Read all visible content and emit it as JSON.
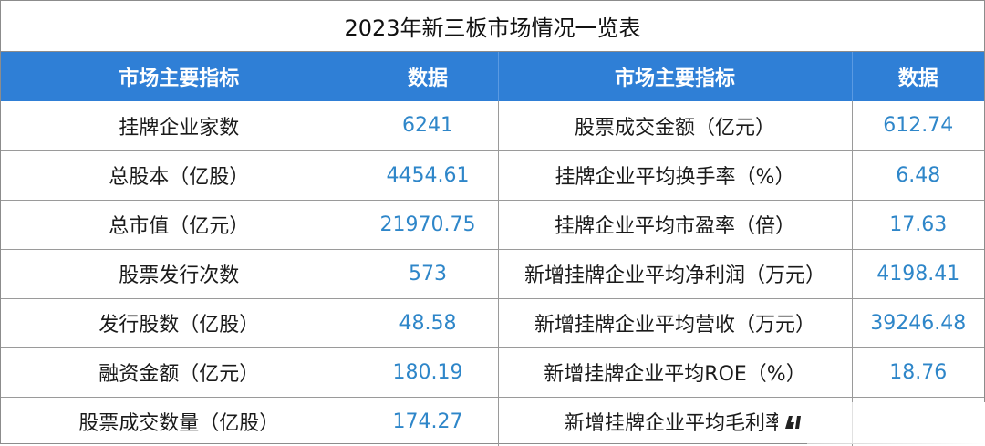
{
  "title": "2023年新三板市场情况一览表",
  "header": {
    "indicator_left": "市场主要指标",
    "data_left": "数据",
    "indicator_right": "市场主要指标",
    "data_right": "数据"
  },
  "rows": [
    {
      "left_label": "挂牌企业家数",
      "left_value": "6241",
      "right_label": "股票成交金额（亿元）",
      "right_value": "612.74"
    },
    {
      "left_label": "总股本（亿股）",
      "left_value": "4454.61",
      "right_label": "挂牌企业平均换手率（%）",
      "right_value": "6.48"
    },
    {
      "left_label": "总市值（亿元）",
      "left_value": "21970.75",
      "right_label": "挂牌企业平均市盈率（倍）",
      "right_value": "17.63"
    },
    {
      "left_label": "股票发行次数",
      "left_value": "573",
      "right_label": "新增挂牌企业平均净利润（万元）",
      "right_value": "4198.41"
    },
    {
      "left_label": "发行股数（亿股）",
      "left_value": "48.58",
      "right_label": "新增挂牌企业平均营收（万元）",
      "right_value": "39246.48"
    },
    {
      "left_label": "融资金额（亿元）",
      "left_value": "180.19",
      "right_label": "新增挂牌企业平均ROE（%）",
      "right_value": "18.76"
    },
    {
      "left_label": "股票成交数量（亿股）",
      "left_value": "174.27",
      "right_label": "新增挂牌企业平均毛利率",
      "right_value": ""
    }
  ],
  "colors": {
    "header_bg": "#2f7fd6",
    "header_text": "#ffffff",
    "value_text": "#2e86c9",
    "label_text": "#1a1a1a",
    "border": "#9a9a9a"
  },
  "watermark": {
    "icon": "logo-watermark-icon"
  }
}
